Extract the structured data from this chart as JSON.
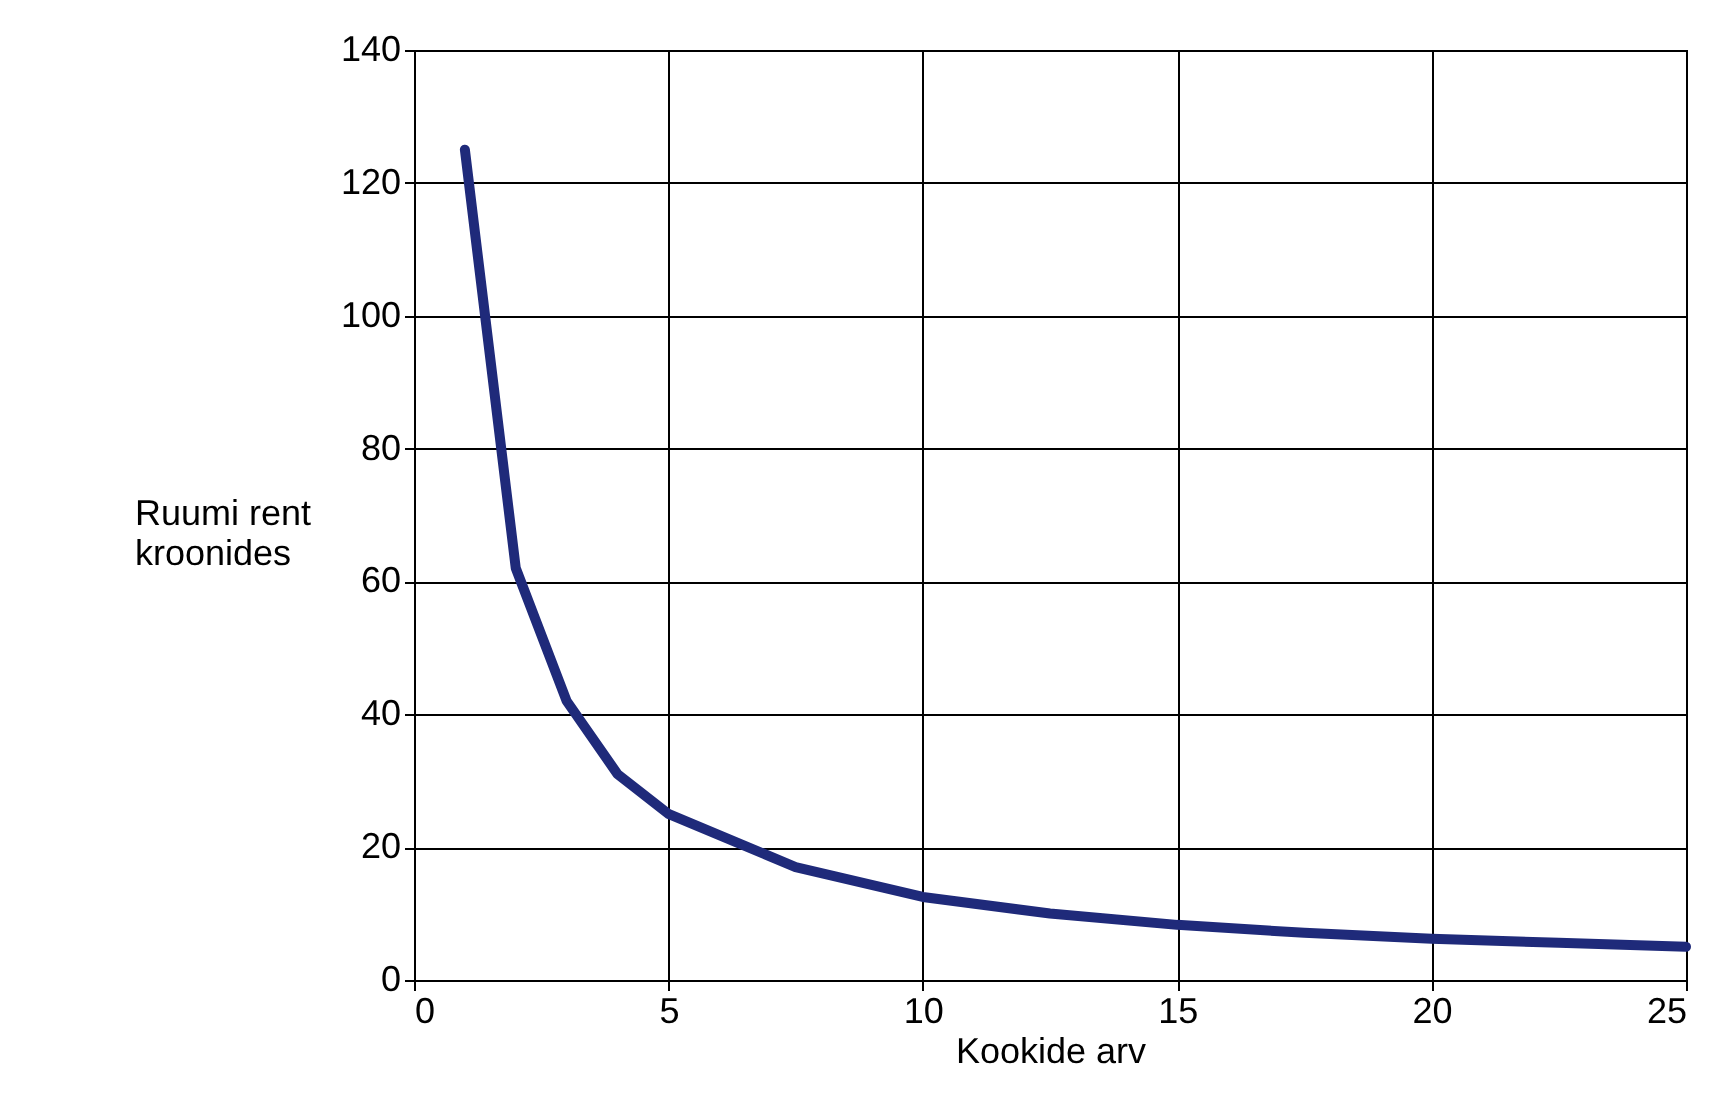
{
  "chart_data": {
    "type": "line",
    "xlabel": "Kookide arv",
    "ylabel": "Ruumi rent\nkroonides",
    "x": [
      1,
      2,
      3,
      4,
      5,
      7.5,
      10,
      12.5,
      15,
      17.5,
      20,
      22.5,
      25
    ],
    "series": [
      {
        "color": "#1f2a7a",
        "values": [
          125,
          62,
          42,
          31,
          25,
          17,
          12.5,
          10,
          8.3,
          7.1,
          6.2,
          5.6,
          5
        ]
      }
    ],
    "xlim": [
      0,
      25
    ],
    "xticks": [
      0,
      5,
      10,
      15,
      20,
      25
    ],
    "ylim": [
      0,
      140
    ],
    "yticks": [
      0,
      20,
      40,
      60,
      80,
      100,
      120,
      140
    ],
    "grid": true,
    "marker": "none",
    "line_style": "solid"
  }
}
